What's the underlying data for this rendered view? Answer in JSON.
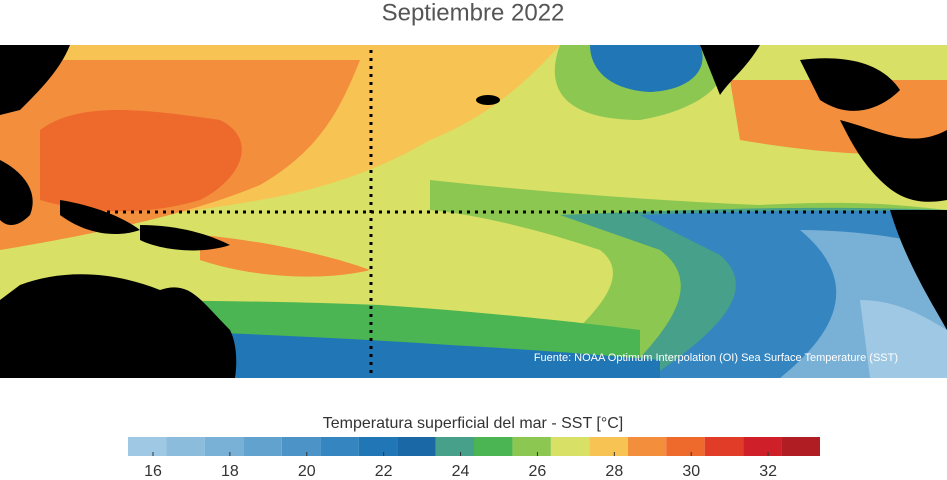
{
  "title": "Septiembre 2022",
  "source": "Fuente: NOAA Optimum Interpolation (OI) Sea Surface Temperature (SST)",
  "colorbar": {
    "label": "Temperatura superficial del mar - SST  [°C]",
    "xlim": [
      15.35,
      33.35
    ],
    "bins": [
      15.35,
      16.35,
      17.35,
      18.35,
      19.35,
      20.35,
      21.35,
      22.35,
      23.35,
      24.35,
      25.35,
      26.35,
      27.35,
      28.35,
      29.35,
      30.35,
      31.35,
      32.35,
      33.35
    ],
    "colors": [
      "#9ec8e3",
      "#8bbcdc",
      "#78b0d6",
      "#62a2cf",
      "#4c94c8",
      "#3585c0",
      "#2176b5",
      "#1a68a6",
      "#46a08a",
      "#4ab552",
      "#8cc751",
      "#d8e065",
      "#f7c453",
      "#f28e3c",
      "#ee6a2c",
      "#e13c27",
      "#cf2029",
      "#b01e23"
    ],
    "ticks": [
      16,
      18,
      20,
      22,
      24,
      26,
      28,
      30,
      32
    ]
  }
}
